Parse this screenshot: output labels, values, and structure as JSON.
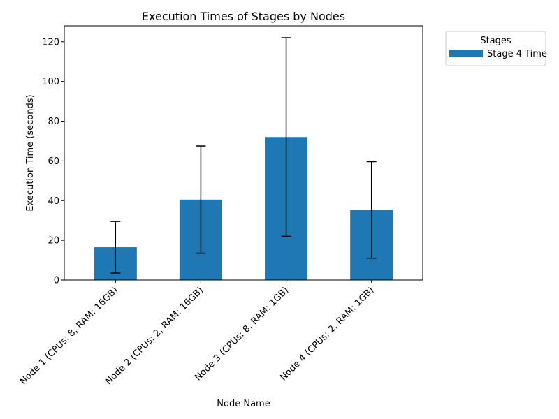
{
  "chart_data": {
    "type": "bar",
    "title": "Execution Times of Stages by Nodes",
    "xlabel": "Node Name",
    "ylabel": "Execution Time (seconds)",
    "categories": [
      "Node 1 (CPUs: 8, RAM: 16GB)",
      "Node 2 (CPUs: 2, RAM: 16GB)",
      "Node 3 (CPUs: 8, RAM: 1GB)",
      "Node 4 (CPUs: 2, RAM: 1GB)"
    ],
    "series": [
      {
        "name": "Stage 4 Time",
        "values": [
          16.5,
          40.5,
          72.0,
          35.3
        ],
        "errors": [
          13.0,
          27.0,
          50.0,
          24.3
        ],
        "color": "#1f77b4"
      }
    ],
    "ylim": [
      0,
      128
    ],
    "yticks": [
      0,
      20,
      40,
      60,
      80,
      100,
      120
    ],
    "grid": false,
    "legend": {
      "title": "Stages",
      "placement": "outside top-right"
    }
  }
}
